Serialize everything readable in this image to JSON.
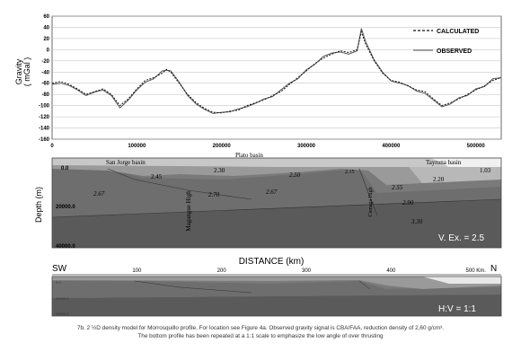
{
  "chart_data": {
    "type": "line",
    "ylabel": "Gravity\n( mGal )",
    "ylabel_line1": "Gravity",
    "ylabel_line2": "( mGal )",
    "ylim": [
      -160,
      60
    ],
    "xlim": [
      0,
      530000
    ],
    "yticks": [
      "60",
      "40",
      "20",
      "0",
      "-20",
      "-40",
      "-60",
      "-80",
      "-100",
      "-120",
      "-140",
      "-160"
    ],
    "xticks": [
      "0",
      "100000",
      "200000",
      "300000",
      "400000",
      "500000"
    ],
    "legend_position": "top-right",
    "series": [
      {
        "name": "CALCULATED",
        "style": "dashed",
        "x": [
          0,
          10000,
          20000,
          30000,
          40000,
          50000,
          60000,
          70000,
          80000,
          90000,
          100000,
          110000,
          120000,
          130000,
          135000,
          140000,
          150000,
          160000,
          170000,
          180000,
          190000,
          200000,
          210000,
          220000,
          230000,
          240000,
          250000,
          260000,
          270000,
          280000,
          290000,
          300000,
          310000,
          320000,
          330000,
          340000,
          350000,
          360000,
          365000,
          370000,
          380000,
          390000,
          400000,
          410000,
          420000,
          430000,
          440000,
          450000,
          460000,
          470000,
          480000,
          490000,
          500000,
          510000,
          520000,
          530000
        ],
        "y": [
          -60,
          -57,
          -62,
          -70,
          -80,
          -75,
          -70,
          -80,
          -100,
          -88,
          -70,
          -55,
          -50,
          -42,
          -35,
          -40,
          -60,
          -80,
          -95,
          -105,
          -112,
          -113,
          -110,
          -108,
          -100,
          -95,
          -90,
          -82,
          -75,
          -62,
          -50,
          -38,
          -25,
          -15,
          -8,
          -2,
          -5,
          0,
          32,
          10,
          -20,
          -42,
          -55,
          -58,
          -65,
          -72,
          -75,
          -88,
          -100,
          -95,
          -88,
          -80,
          -72,
          -65,
          -55,
          -50
        ]
      },
      {
        "name": "OBSERVED",
        "style": "solid",
        "x": [
          0,
          10000,
          20000,
          30000,
          40000,
          50000,
          60000,
          70000,
          80000,
          90000,
          100000,
          110000,
          120000,
          130000,
          135000,
          140000,
          150000,
          160000,
          170000,
          180000,
          190000,
          200000,
          210000,
          220000,
          230000,
          240000,
          250000,
          260000,
          270000,
          280000,
          290000,
          300000,
          310000,
          320000,
          330000,
          340000,
          350000,
          360000,
          365000,
          370000,
          380000,
          390000,
          400000,
          410000,
          420000,
          430000,
          440000,
          450000,
          460000,
          470000,
          480000,
          490000,
          500000,
          510000,
          520000,
          530000
        ],
        "y": [
          -62,
          -60,
          -64,
          -72,
          -82,
          -76,
          -72,
          -82,
          -104,
          -90,
          -72,
          -58,
          -52,
          -38,
          -37,
          -38,
          -58,
          -82,
          -97,
          -107,
          -114,
          -112,
          -111,
          -106,
          -102,
          -96,
          -88,
          -84,
          -72,
          -60,
          -52,
          -36,
          -26,
          -12,
          -6,
          -4,
          -8,
          -2,
          38,
          14,
          -18,
          -40,
          -56,
          -60,
          -64,
          -74,
          -78,
          -90,
          -102,
          -97,
          -86,
          -82,
          -70,
          -66,
          -52,
          -50
        ]
      }
    ]
  },
  "section": {
    "ylabel": "Depth (m)",
    "depth_labels": [
      "0.0",
      "20000.0",
      "40000.0"
    ],
    "basins": [
      "San Jorge basin",
      "Plato basin",
      "Tayrona basin"
    ],
    "densities": [
      "2.30",
      "2.45",
      "2.50",
      "2.20",
      "2.15",
      "1.03",
      "2.55",
      "2.67",
      "2.70",
      "2.67",
      "2.90",
      "3.30"
    ],
    "highs": [
      "Magangue High",
      "Cienaga High"
    ],
    "exaggeration": "V. Ex. = 2.5"
  },
  "distance": {
    "title": "DISTANCE (km)",
    "left_dir": "SW",
    "right_dir": "N",
    "ticks": [
      "100",
      "200",
      "300",
      "400",
      "500 Km."
    ]
  },
  "bottom": {
    "ratio": "H:V = 1:1",
    "depth_labels": [
      "0.0",
      "20000.0",
      "40000.0"
    ]
  },
  "caption": {
    "line1": "7b. 2 ½D density model for Morrosquillo profile. For location see Figure 4a. Observed gravity signal is CBA/FAA, reduction density of 2,60 g/cm³.",
    "line2": "The bottom profile has been repeated at a 1:1 scale to emphasize the low angle of over thrusting"
  }
}
